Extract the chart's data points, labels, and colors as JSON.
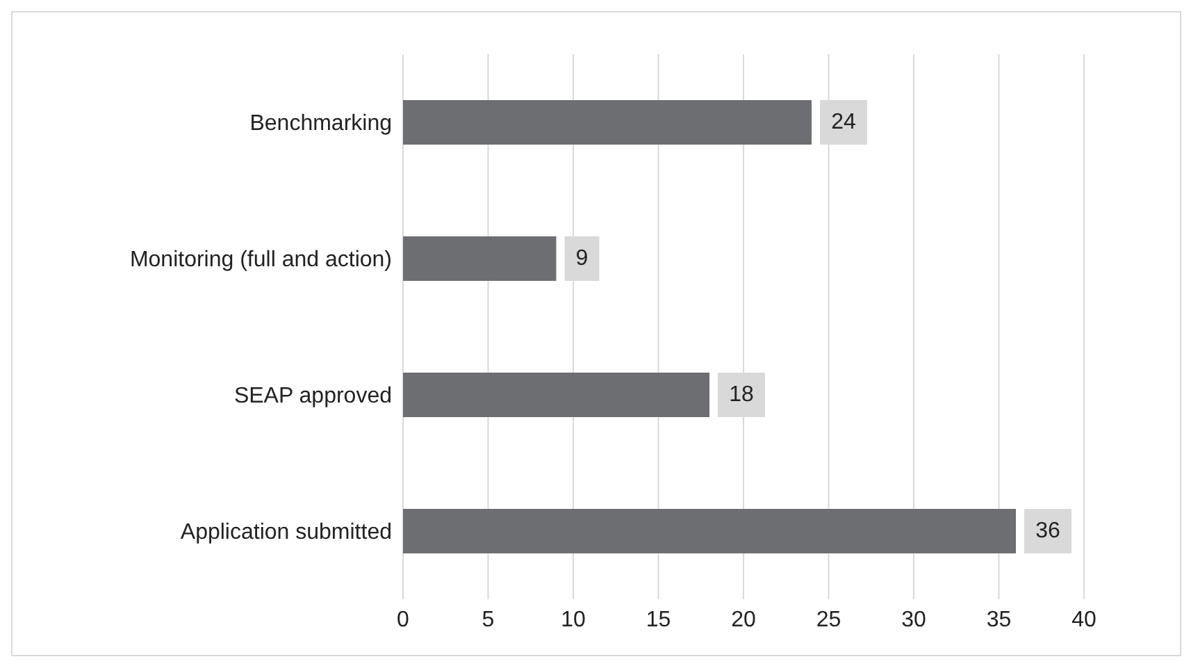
{
  "chart_data": {
    "type": "bar",
    "orientation": "horizontal",
    "categories": [
      "Benchmarking",
      "Monitoring (full and action)",
      "SEAP approved",
      "Application submitted"
    ],
    "values": [
      24,
      9,
      18,
      36
    ],
    "color": "#6d6e71",
    "xlim": [
      0,
      40
    ],
    "xticks": [
      0,
      5,
      10,
      15,
      20,
      25,
      30,
      35,
      40
    ],
    "grid": "x",
    "data_labels": true
  }
}
